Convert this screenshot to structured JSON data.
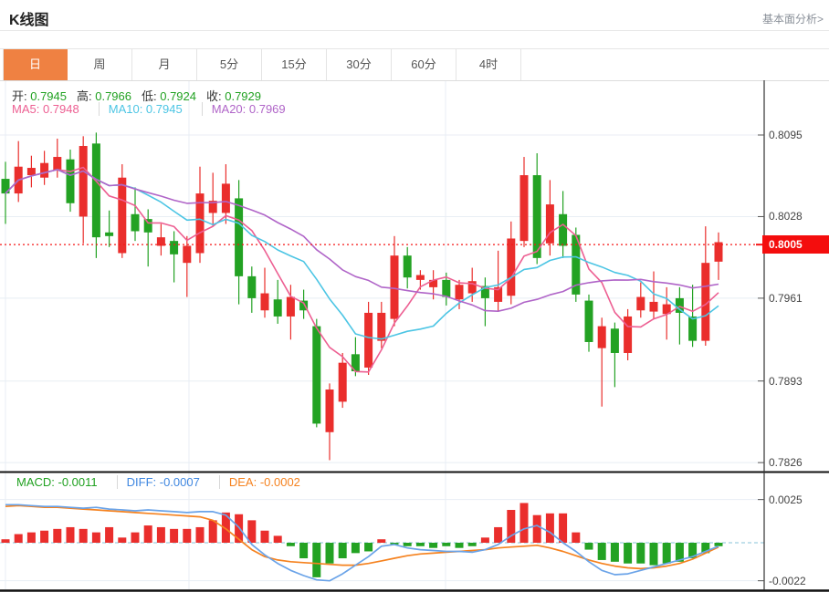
{
  "header": {
    "title": "K线图",
    "link": "基本面分析>"
  },
  "tabs": {
    "active": "日",
    "items": [
      "日",
      "周",
      "月",
      "5分",
      "15分",
      "30分",
      "60分",
      "4时"
    ]
  },
  "price_legend": {
    "ohlc": [
      {
        "name": "open",
        "label": "开:",
        "value": "0.7945"
      },
      {
        "name": "high",
        "label": "高:",
        "value": "0.7966"
      },
      {
        "name": "low",
        "label": "低:",
        "value": "0.7924"
      },
      {
        "name": "close",
        "label": "收:",
        "value": "0.7929"
      }
    ],
    "ma": [
      {
        "name": "ma5",
        "label": "MA5:",
        "value": "0.7948"
      },
      {
        "name": "ma10",
        "label": "MA10:",
        "value": "0.7945"
      },
      {
        "name": "ma20",
        "label": "MA20:",
        "value": "0.7969"
      }
    ]
  },
  "macd_legend": [
    {
      "name": "macd",
      "label": "MACD:",
      "value": "-0.0011"
    },
    {
      "name": "diff",
      "label": "DIFF:",
      "value": "-0.0007"
    },
    {
      "name": "dea",
      "label": "DEA:",
      "value": "-0.0002"
    }
  ],
  "y_axis": {
    "price_labels": [
      "0.8095",
      "0.8028",
      "0.7961",
      "0.7893",
      "0.7826"
    ],
    "current_price": "0.8005",
    "macd_labels": [
      "0.0025",
      "-0.0022"
    ]
  },
  "colors": {
    "up": "#ea2e2c",
    "down": "#23a223",
    "ma5": "#ed5f92",
    "ma10": "#4cc5e4",
    "ma20": "#b065c8",
    "diff_line": "#6aa3e8",
    "dea_line": "#f5821f",
    "ohlc_value": "#21a121",
    "macd_value": "#21a121",
    "diff_value": "#3f87e0",
    "dea_value": "#f5821f",
    "current_line": "#f51616",
    "badge_bg": "#f40d0d",
    "active_tab": "#ef8142",
    "grid": "#e8eef4",
    "zero_dash": "#9fcfe0",
    "frame_dark": "#111",
    "axis_line": "#333"
  },
  "chart_data": {
    "type": "candlestick_with_macd",
    "title": "K线图",
    "convention": "red = up, green = down",
    "price_axis_ticks": [
      0.8095,
      0.8028,
      0.7961,
      0.7893,
      0.7826
    ],
    "current_price": 0.8005,
    "macd_axis_ticks": [
      0.0025,
      -0.0022
    ],
    "ma_periods": [
      5,
      10,
      20
    ],
    "candles_ohlc": [
      [
        0.8059,
        0.8073,
        0.8022,
        0.8047
      ],
      [
        0.8047,
        0.809,
        0.804,
        0.8069
      ],
      [
        0.8062,
        0.8078,
        0.8052,
        0.8068
      ],
      [
        0.806,
        0.8082,
        0.8054,
        0.8072
      ],
      [
        0.8066,
        0.8092,
        0.806,
        0.8077
      ],
      [
        0.8075,
        0.8083,
        0.8032,
        0.8039
      ],
      [
        0.8028,
        0.8094,
        0.8006,
        0.8086
      ],
      [
        0.8088,
        0.8097,
        0.7994,
        0.8011
      ],
      [
        0.8015,
        0.8033,
        0.8003,
        0.8012
      ],
      [
        0.7998,
        0.8071,
        0.7994,
        0.806
      ],
      [
        0.803,
        0.8052,
        0.8008,
        0.8016
      ],
      [
        0.8026,
        0.8034,
        0.7987,
        0.8015
      ],
      [
        0.8004,
        0.8022,
        0.7996,
        0.8011
      ],
      [
        0.8008,
        0.8016,
        0.7974,
        0.7997
      ],
      [
        0.799,
        0.8012,
        0.7962,
        0.8004
      ],
      [
        0.7998,
        0.8069,
        0.799,
        0.8047
      ],
      [
        0.8031,
        0.8064,
        0.802,
        0.8041
      ],
      [
        0.8031,
        0.8071,
        0.8022,
        0.8055
      ],
      [
        0.8043,
        0.8058,
        0.7956,
        0.7979
      ],
      [
        0.7979,
        0.7987,
        0.7949,
        0.7961
      ],
      [
        0.7951,
        0.7986,
        0.7945,
        0.7965
      ],
      [
        0.796,
        0.7976,
        0.794,
        0.7946
      ],
      [
        0.7946,
        0.7972,
        0.7927,
        0.7962
      ],
      [
        0.7959,
        0.7968,
        0.7944,
        0.7951
      ],
      [
        0.7938,
        0.7944,
        0.7855,
        0.7858
      ],
      [
        0.7851,
        0.7891,
        0.7828,
        0.7886
      ],
      [
        0.7876,
        0.7916,
        0.7871,
        0.7908
      ],
      [
        0.7915,
        0.7929,
        0.7897,
        0.7901
      ],
      [
        0.7904,
        0.7958,
        0.7898,
        0.7949
      ],
      [
        0.7926,
        0.7958,
        0.792,
        0.7949
      ],
      [
        0.7944,
        0.8012,
        0.7938,
        0.7996
      ],
      [
        0.7996,
        0.8003,
        0.7969,
        0.7978
      ],
      [
        0.7976,
        0.7984,
        0.7968,
        0.798
      ],
      [
        0.797,
        0.7984,
        0.796,
        0.7976
      ],
      [
        0.7976,
        0.7982,
        0.7955,
        0.7962
      ],
      [
        0.796,
        0.7976,
        0.7952,
        0.7972
      ],
      [
        0.7965,
        0.7986,
        0.7958,
        0.7975
      ],
      [
        0.7971,
        0.7978,
        0.7938,
        0.7961
      ],
      [
        0.7958,
        0.8,
        0.795,
        0.797
      ],
      [
        0.7963,
        0.8024,
        0.7956,
        0.801
      ],
      [
        0.8008,
        0.8077,
        0.8003,
        0.8062
      ],
      [
        0.8062,
        0.808,
        0.7989,
        0.7994
      ],
      [
        0.8006,
        0.8058,
        0.7996,
        0.8038
      ],
      [
        0.803,
        0.8049,
        0.7994,
        0.8004
      ],
      [
        0.8013,
        0.8019,
        0.7958,
        0.7964
      ],
      [
        0.7959,
        0.7964,
        0.7917,
        0.7925
      ],
      [
        0.792,
        0.7945,
        0.7872,
        0.7938
      ],
      [
        0.7936,
        0.7941,
        0.7888,
        0.7916
      ],
      [
        0.7916,
        0.7952,
        0.791,
        0.7946
      ],
      [
        0.7951,
        0.7974,
        0.7945,
        0.7962
      ],
      [
        0.795,
        0.7983,
        0.7944,
        0.7958
      ],
      [
        0.7948,
        0.797,
        0.7927,
        0.7956
      ],
      [
        0.7961,
        0.797,
        0.7923,
        0.7949
      ],
      [
        0.7946,
        0.7972,
        0.7921,
        0.7926
      ],
      [
        0.7926,
        0.802,
        0.7922,
        0.799
      ],
      [
        0.7991,
        0.8015,
        0.7976,
        0.8007
      ]
    ],
    "macd": {
      "histogram_x1e4": [
        2,
        5,
        6,
        7,
        8,
        9,
        8,
        6,
        9,
        3,
        6,
        10,
        9,
        8,
        8,
        9,
        13,
        17.5,
        16.5,
        13,
        7,
        4,
        -2,
        -9,
        -20,
        -12,
        -9,
        -6,
        -5,
        2,
        -1,
        -2,
        -2,
        -3,
        -2,
        -3,
        -2,
        3,
        9,
        19,
        23,
        16,
        17,
        17,
        6,
        -4,
        -10,
        -11,
        -12,
        -12,
        -13,
        -12,
        -11,
        -9,
        -6,
        -2
      ],
      "diff_x1e4": [
        22,
        22,
        21.5,
        21,
        21,
        20.5,
        20,
        20.5,
        19.5,
        19,
        18.5,
        19,
        18.5,
        18,
        17.5,
        18,
        18,
        16,
        9,
        -1,
        -7,
        -12,
        -16,
        -19,
        -21.5,
        -22,
        -18,
        -13,
        -8,
        -2,
        -1,
        -3,
        -4,
        -4.5,
        -5,
        -5,
        -5.5,
        -4,
        -1,
        4,
        8,
        10,
        6,
        0,
        -5,
        -11,
        -16,
        -18.5,
        -18,
        -16,
        -14,
        -12,
        -10,
        -8,
        -5,
        -2
      ],
      "dea_x1e4": [
        21,
        21.5,
        21,
        20.5,
        20.5,
        20,
        19.5,
        19,
        18.5,
        18,
        17.5,
        17,
        16.5,
        16,
        15.5,
        15,
        13,
        8,
        2,
        -4,
        -8,
        -10,
        -11,
        -11.5,
        -12,
        -12.5,
        -13,
        -13,
        -12,
        -10.5,
        -9,
        -7.5,
        -6.5,
        -6,
        -5.5,
        -5,
        -4.5,
        -4,
        -3,
        -2.5,
        -2,
        -1.5,
        -3,
        -5,
        -7.5,
        -10,
        -12,
        -13.5,
        -14.5,
        -15,
        -14.5,
        -13.5,
        -12,
        -9.5,
        -6,
        -2.5
      ]
    }
  }
}
